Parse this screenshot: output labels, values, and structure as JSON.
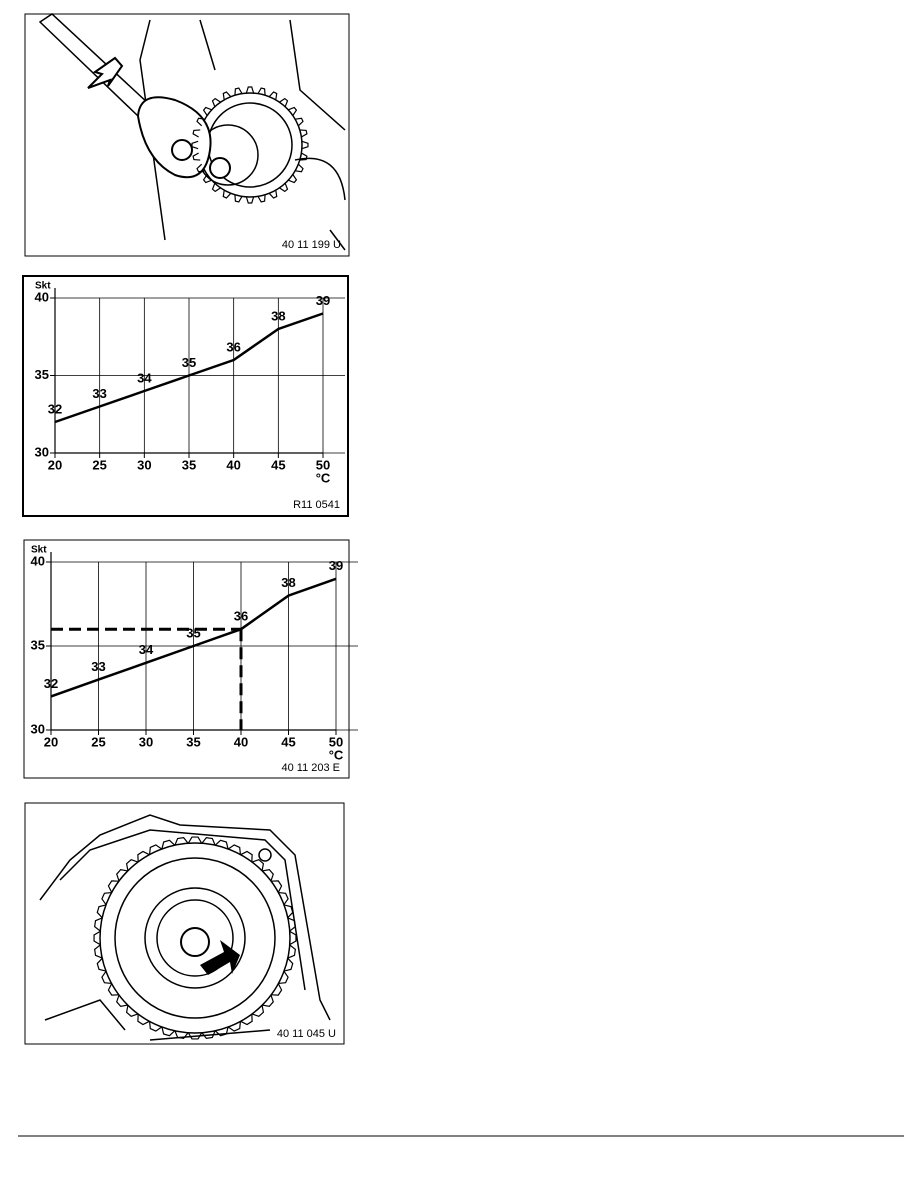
{
  "figures": [
    {
      "caption": "40 11 199 U"
    },
    {
      "caption": "40 11 045 U"
    }
  ],
  "chart_data": [
    {
      "type": "line",
      "ylabel": "Skt",
      "xlabel": "°C",
      "caption": "R11 0541",
      "x": [
        20,
        25,
        30,
        35,
        40,
        45,
        50
      ],
      "values": [
        32,
        33,
        34,
        35,
        36,
        38,
        39
      ],
      "color": "#000000",
      "xlim": [
        20,
        50
      ],
      "ylim": [
        30,
        40
      ],
      "xticks": [
        20,
        25,
        30,
        35,
        40,
        45,
        50
      ],
      "yticks": [
        30,
        35,
        40
      ],
      "grid": true
    },
    {
      "type": "line",
      "ylabel": "Skt",
      "xlabel": "°C",
      "caption": "40 11 203 E",
      "x": [
        20,
        25,
        30,
        35,
        40,
        45,
        50
      ],
      "values": [
        32,
        33,
        34,
        35,
        36,
        38,
        39
      ],
      "color": "#000000",
      "xlim": [
        20,
        50
      ],
      "ylim": [
        30,
        40
      ],
      "xticks": [
        20,
        25,
        30,
        35,
        40,
        45,
        50
      ],
      "yticks": [
        30,
        35,
        40
      ],
      "grid": true,
      "reference": {
        "x": 40,
        "y": 36
      }
    }
  ]
}
